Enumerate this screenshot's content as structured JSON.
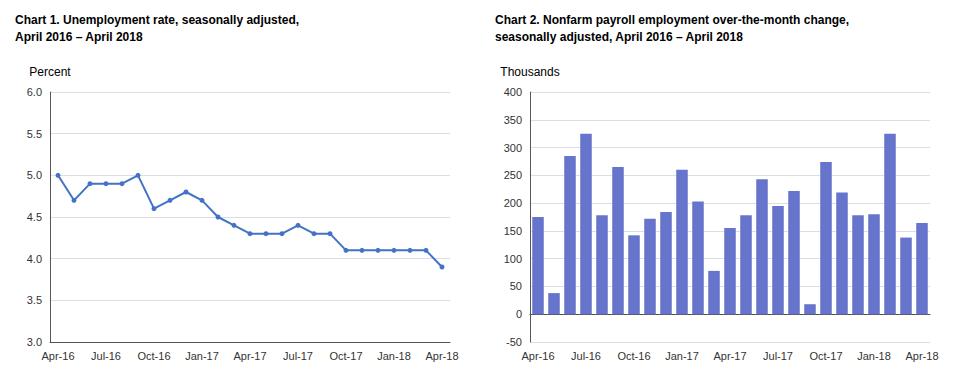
{
  "chart_data": [
    {
      "type": "line",
      "title": "Chart 1. Unemployment rate, seasonally adjusted,\nApril 2016 – April 2018",
      "ylabel": "Percent",
      "categories": [
        "Apr-16",
        null,
        null,
        "Jul-16",
        null,
        null,
        "Oct-16",
        null,
        null,
        "Jan-17",
        null,
        null,
        "Apr-17",
        null,
        null,
        "Jul-17",
        null,
        null,
        "Oct-17",
        null,
        null,
        "Jan-18",
        null,
        null,
        "Apr-18"
      ],
      "values": [
        5.0,
        4.7,
        4.9,
        4.9,
        4.9,
        5.0,
        4.6,
        4.7,
        4.8,
        4.7,
        4.5,
        4.4,
        4.3,
        4.3,
        4.3,
        4.4,
        4.3,
        4.3,
        4.1,
        4.1,
        4.1,
        4.1,
        4.1,
        4.1,
        3.9
      ],
      "color": "#4472C4",
      "marker": "circle",
      "ylim": [
        3.0,
        6.0
      ],
      "yticks": [
        {
          "value": 3,
          "label": "3.0"
        },
        3.5,
        {
          "value": 4,
          "label": "4.0"
        },
        4.5,
        {
          "value": 5,
          "label": "5.0"
        },
        5.5,
        {
          "value": 6,
          "label": "6.0"
        }
      ],
      "grid": true
    },
    {
      "type": "bar",
      "title": "Chart 2. Nonfarm payroll employment over-the-month change,\nseasonally adjusted, April 2016 – April 2018",
      "ylabel": "Thousands",
      "categories": [
        "Apr-16",
        null,
        null,
        "Jul-16",
        null,
        null,
        "Oct-16",
        null,
        null,
        "Jan-17",
        null,
        null,
        "Apr-17",
        null,
        null,
        "Jul-17",
        null,
        null,
        "Oct-17",
        null,
        null,
        "Jan-18",
        null,
        null,
        "Apr-18"
      ],
      "values": [
        175,
        38,
        285,
        325,
        178,
        265,
        142,
        172,
        184,
        260,
        203,
        78,
        155,
        178,
        243,
        195,
        222,
        18,
        274,
        219,
        178,
        180,
        325,
        138,
        164
      ],
      "color": "#6674CC",
      "ylim": [
        -50,
        400
      ],
      "yticks": [
        -50,
        0,
        50,
        100,
        150,
        200,
        250,
        300,
        350,
        400
      ],
      "grid": true
    }
  ]
}
